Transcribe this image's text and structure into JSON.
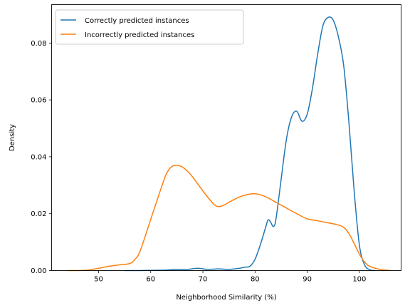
{
  "chart_data": {
    "type": "line",
    "title": "",
    "xlabel": "Neighborhood Similarity (%)",
    "ylabel": "Density",
    "xlim": [
      41,
      108
    ],
    "ylim": [
      0,
      0.0935
    ],
    "xticks": [
      50,
      60,
      70,
      80,
      90,
      100
    ],
    "xtick_labels": [
      "50",
      "60",
      "70",
      "80",
      "90",
      "100"
    ],
    "yticks": [
      0,
      0.02,
      0.04,
      0.06,
      0.08
    ],
    "ytick_labels": [
      "0.00",
      "0.02",
      "0.04",
      "0.06",
      "0.08"
    ],
    "grid": false,
    "legend_position": "top-left",
    "series": [
      {
        "name": "Correctly predicted instances",
        "color": "#1f77b4",
        "x": [
          55,
          58,
          60,
          63,
          65,
          67,
          69,
          71,
          73,
          75,
          77,
          78,
          79,
          80,
          81,
          82,
          82.5,
          83,
          83.5,
          84,
          85,
          86,
          87,
          88,
          89,
          90,
          91,
          92,
          93,
          94,
          95,
          96,
          97,
          98,
          99,
          100,
          101,
          102,
          103
        ],
        "y": [
          0,
          0,
          0.0001,
          0.0002,
          0.0004,
          0.0004,
          0.0008,
          0.0004,
          0.0006,
          0.0004,
          0.0008,
          0.0012,
          0.0015,
          0.004,
          0.009,
          0.015,
          0.0178,
          0.017,
          0.0155,
          0.018,
          0.032,
          0.046,
          0.054,
          0.056,
          0.0525,
          0.055,
          0.064,
          0.076,
          0.086,
          0.089,
          0.088,
          0.082,
          0.072,
          0.052,
          0.028,
          0.009,
          0.002,
          0.0003,
          0
        ]
      },
      {
        "name": "Incorrectly predicted instances",
        "color": "#ff7f0e",
        "x": [
          44,
          46,
          48,
          50,
          52,
          54,
          56,
          57,
          58,
          60,
          62,
          63,
          64,
          65,
          66,
          67,
          68,
          70,
          72,
          73,
          74,
          76,
          78,
          80,
          82,
          84,
          86,
          88,
          90,
          92,
          94,
          96,
          97,
          98,
          99,
          100,
          101,
          102,
          104,
          106
        ],
        "y": [
          0,
          0,
          0.0002,
          0.0008,
          0.0015,
          0.002,
          0.0025,
          0.004,
          0.007,
          0.018,
          0.029,
          0.034,
          0.0365,
          0.037,
          0.0365,
          0.035,
          0.033,
          0.028,
          0.0235,
          0.0225,
          0.023,
          0.025,
          0.0265,
          0.027,
          0.026,
          0.024,
          0.022,
          0.02,
          0.0182,
          0.0175,
          0.0168,
          0.016,
          0.0152,
          0.013,
          0.0095,
          0.0058,
          0.003,
          0.0015,
          0.0004,
          0
        ]
      }
    ]
  }
}
